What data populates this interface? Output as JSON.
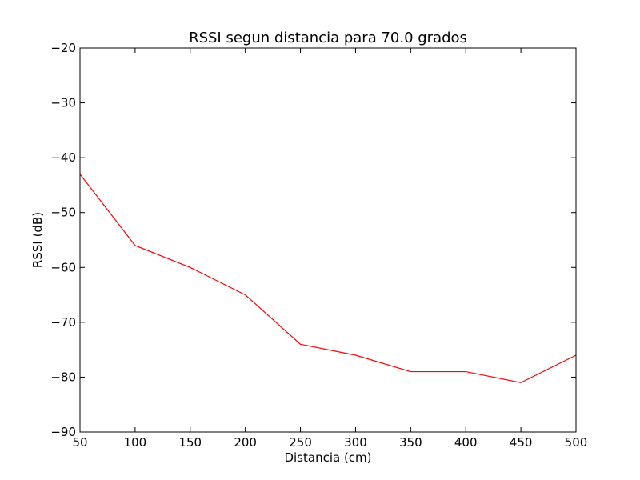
{
  "chart_data": {
    "type": "line",
    "title": "RSSI segun distancia para 70.0 grados",
    "xlabel": "Distancia (cm)",
    "ylabel": "RSSI (dB)",
    "xlim": [
      50,
      500
    ],
    "ylim": [
      -90,
      -20
    ],
    "x_ticks": [
      50,
      100,
      150,
      200,
      250,
      300,
      350,
      400,
      450,
      500
    ],
    "y_ticks": [
      -90,
      -80,
      -70,
      -60,
      -50,
      -40,
      -30,
      -20
    ],
    "x_tick_labels": [
      "50",
      "100",
      "150",
      "200",
      "250",
      "300",
      "350",
      "400",
      "450",
      "500"
    ],
    "y_tick_labels": [
      "−90",
      "−80",
      "−70",
      "−60",
      "−50",
      "−40",
      "−30",
      "−20"
    ],
    "grid": false,
    "series": [
      {
        "color": "#ff0000",
        "x": [
          50,
          100,
          150,
          200,
          250,
          300,
          350,
          400,
          450,
          500
        ],
        "y": [
          -43,
          -56,
          -60,
          -65,
          -74,
          -76,
          -79,
          -79,
          -81,
          -76
        ]
      }
    ]
  }
}
